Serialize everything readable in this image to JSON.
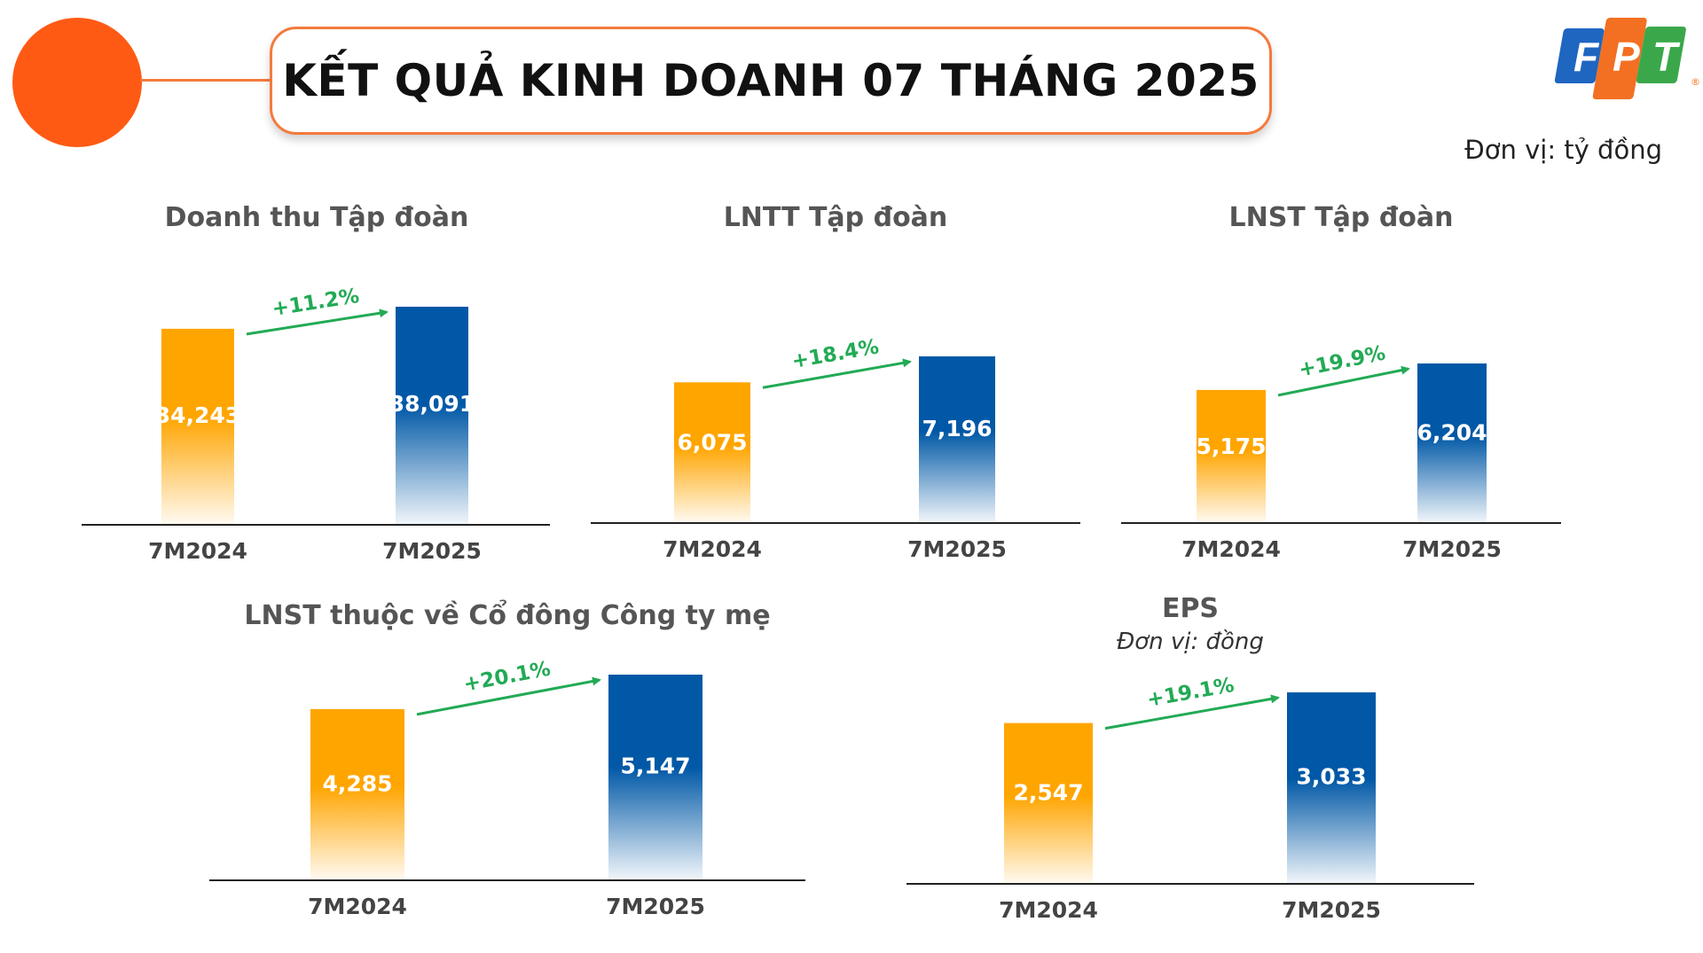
{
  "header": {
    "title": "KẾT QUẢ KINH DOANH 07 THÁNG 2025",
    "unit_note": "Đơn vị: tỷ đồng",
    "logo_text": "FPT",
    "logo_colors": [
      "#1f66c1",
      "#f36f21",
      "#3aa84a"
    ]
  },
  "colors": {
    "accent": "#ff5a14",
    "bar_2024": "#ffa500",
    "bar_2025": "#0058a6",
    "growth": "#22aa55"
  },
  "chart_data": [
    {
      "type": "bar",
      "title": "Doanh thu Tập đoàn",
      "subtitle": "",
      "categories": [
        "7M2024",
        "7M2025"
      ],
      "values": [
        34243,
        38091
      ],
      "labels": [
        "34,243",
        "38,091"
      ],
      "growth_label": "+11.2%"
    },
    {
      "type": "bar",
      "title": "LNTT Tập đoàn",
      "subtitle": "",
      "categories": [
        "7M2024",
        "7M2025"
      ],
      "values": [
        6075,
        7196
      ],
      "labels": [
        "6,075",
        "7,196"
      ],
      "growth_label": "+18.4%"
    },
    {
      "type": "bar",
      "title": "LNST Tập đoàn",
      "subtitle": "",
      "categories": [
        "7M2024",
        "7M2025"
      ],
      "values": [
        5175,
        6204
      ],
      "labels": [
        "5,175",
        "6,204"
      ],
      "growth_label": "+19.9%"
    },
    {
      "type": "bar",
      "title": "LNST thuộc về Cổ đông Công ty mẹ",
      "subtitle": "",
      "categories": [
        "7M2024",
        "7M2025"
      ],
      "values": [
        4285,
        5147
      ],
      "labels": [
        "4,285",
        "5,147"
      ],
      "growth_label": "+20.1%"
    },
    {
      "type": "bar",
      "title": "EPS",
      "subtitle": "Đơn vị: đồng",
      "categories": [
        "7M2024",
        "7M2025"
      ],
      "values": [
        2547,
        3033
      ],
      "labels": [
        "2,547",
        "3,033"
      ],
      "growth_label": "+19.1%"
    }
  ]
}
